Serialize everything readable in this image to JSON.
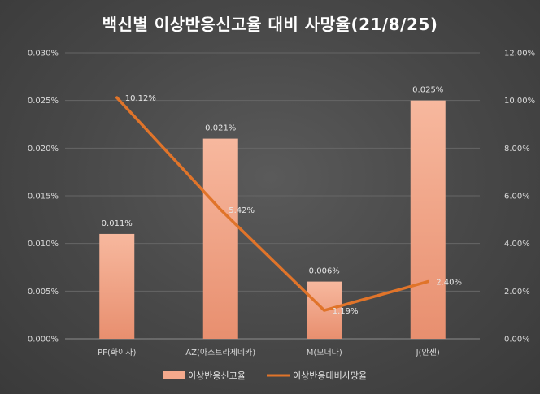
{
  "chart_data": {
    "type": "bar",
    "title": "백신별 이상반응신고율 대비 사망율(21/8/25)",
    "categories": [
      "PF(화이자)",
      "AZ(아스트라제네카)",
      "M(모더나)",
      "J(안센)"
    ],
    "series": [
      {
        "name": "이상반응신고율",
        "type": "bar",
        "axis": "left",
        "values": [
          0.011,
          0.021,
          0.006,
          0.025
        ],
        "labels": [
          "0.011%",
          "0.021%",
          "0.006%",
          "0.025%"
        ],
        "color": "#f4a98c"
      },
      {
        "name": "이상반응대비사망율",
        "type": "line",
        "axis": "right",
        "values": [
          10.12,
          5.42,
          1.19,
          2.4
        ],
        "labels": [
          "10.12%",
          "5.42%",
          "1.19%",
          "2.40%"
        ],
        "color": "#e0742a"
      }
    ],
    "y_left": {
      "ylim": [
        0,
        0.03
      ],
      "ticks": [
        "0.000%",
        "0.005%",
        "0.010%",
        "0.015%",
        "0.020%",
        "0.025%",
        "0.030%"
      ]
    },
    "y_right": {
      "ylim": [
        0,
        12
      ],
      "ticks": [
        "0.00%",
        "2.00%",
        "4.00%",
        "6.00%",
        "8.00%",
        "10.00%",
        "12.00%"
      ]
    },
    "grid": true,
    "legend": "bottom-center"
  }
}
